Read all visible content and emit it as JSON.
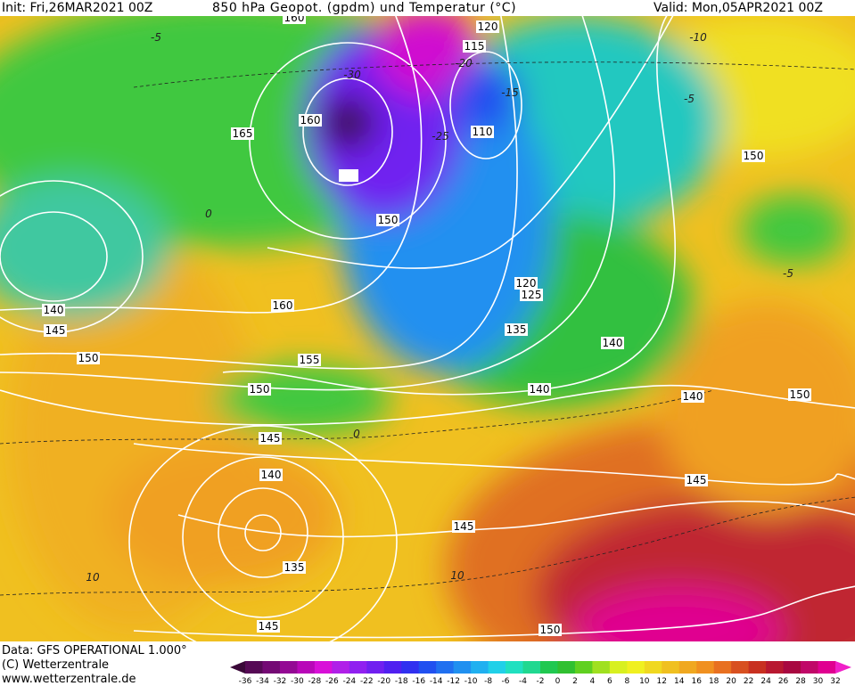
{
  "header": {
    "init": "Init: Fri,26MAR2021 00Z",
    "title": "850 hPa Geopot. (gpdm) und Temperatur (°C)",
    "valid": "Valid: Mon,05APR2021 00Z"
  },
  "map": {
    "geopotential_labels": [
      160,
      120,
      115,
      110,
      165,
      160,
      150,
      150,
      140,
      145,
      150,
      160,
      120,
      125,
      135,
      140,
      155,
      150,
      140,
      140,
      150,
      145,
      140,
      145,
      145,
      135,
      145,
      150
    ],
    "temperature_labels": [
      -5,
      -30,
      -20,
      -15,
      -25,
      -10,
      -5,
      0,
      -5,
      0,
      10,
      10
    ]
  },
  "footer": {
    "data": "Data: GFS OPERATIONAL 1.000°",
    "copyright": "(C) Wetterzentrale",
    "url": "www.wetterzentrale.de"
  },
  "colorbar": {
    "labels": [
      "-36",
      "-34",
      "-32",
      "-30",
      "-28",
      "-26",
      "-24",
      "-22",
      "-20",
      "-18",
      "-16",
      "-14",
      "-12",
      "-10",
      "-8",
      "-6",
      "-4",
      "-2",
      "0",
      "2",
      "4",
      "6",
      "8",
      "10",
      "12",
      "14",
      "16",
      "18",
      "20",
      "22",
      "24",
      "26",
      "28",
      "30",
      "32"
    ],
    "colors": [
      "#3a0838",
      "#560a55",
      "#740a74",
      "#940a94",
      "#b808b8",
      "#d810d8",
      "#b020e8",
      "#9020f0",
      "#7020f0",
      "#5020f0",
      "#3030f0",
      "#2050f0",
      "#2070f0",
      "#2090f0",
      "#20b0f0",
      "#20d0e8",
      "#20e0c0",
      "#20d890",
      "#20c850",
      "#30c030",
      "#60d020",
      "#a0e020",
      "#d8f020",
      "#f0f020",
      "#f0d820",
      "#f0c020",
      "#f0a820",
      "#f09020",
      "#e87020",
      "#d85020",
      "#c83020",
      "#b81830",
      "#a80840",
      "#c00868",
      "#e00090",
      "#f020c8"
    ]
  }
}
